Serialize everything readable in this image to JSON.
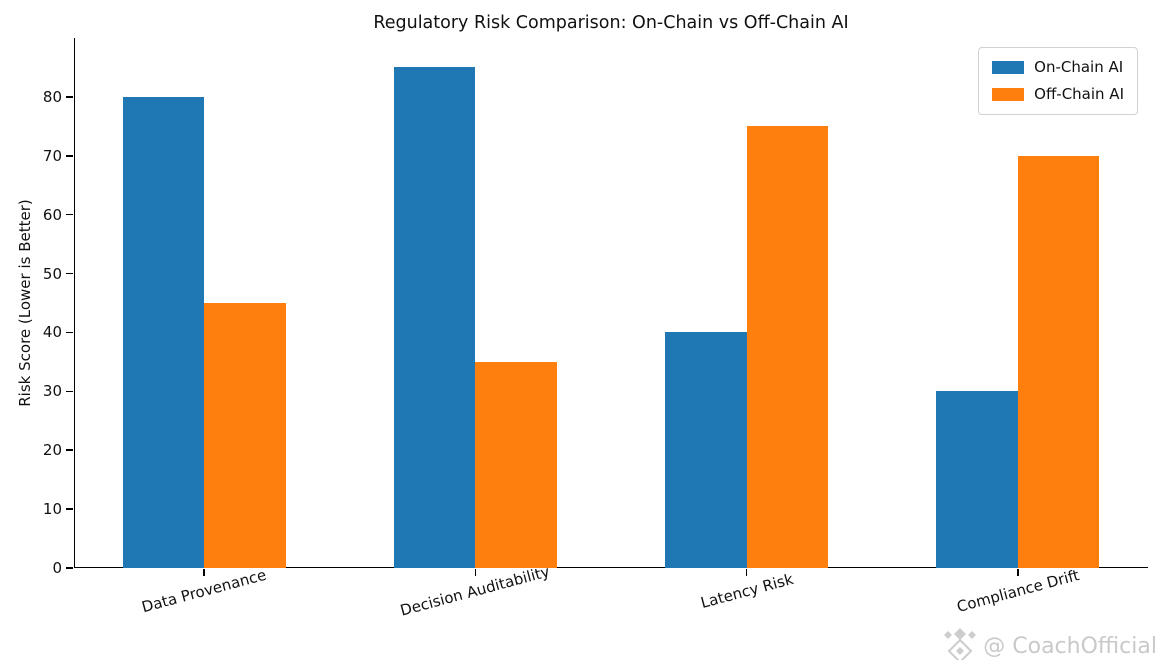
{
  "chart_data": {
    "type": "bar",
    "title": "Regulatory Risk Comparison: On-Chain vs Off-Chain AI",
    "xlabel": "",
    "ylabel": "Risk Score (Lower is Better)",
    "categories": [
      "Data Provenance",
      "Decision Auditability",
      "Latency Risk",
      "Compliance Drift"
    ],
    "series": [
      {
        "name": "On-Chain AI",
        "color": "#1f77b4",
        "values": [
          80,
          85,
          40,
          30
        ]
      },
      {
        "name": "Off-Chain AI",
        "color": "#ff7f0e",
        "values": [
          45,
          35,
          75,
          70
        ]
      }
    ],
    "ylim": [
      0,
      90
    ],
    "yticks": [
      0,
      10,
      20,
      30,
      40,
      50,
      60,
      70,
      80
    ],
    "grid": false,
    "legend_position": "upper right",
    "xtick_rotation": 15
  },
  "watermark": {
    "text": "@ CoachOfficial",
    "icon": "diamond-ornament-icon",
    "color": "#c9c9c9"
  }
}
